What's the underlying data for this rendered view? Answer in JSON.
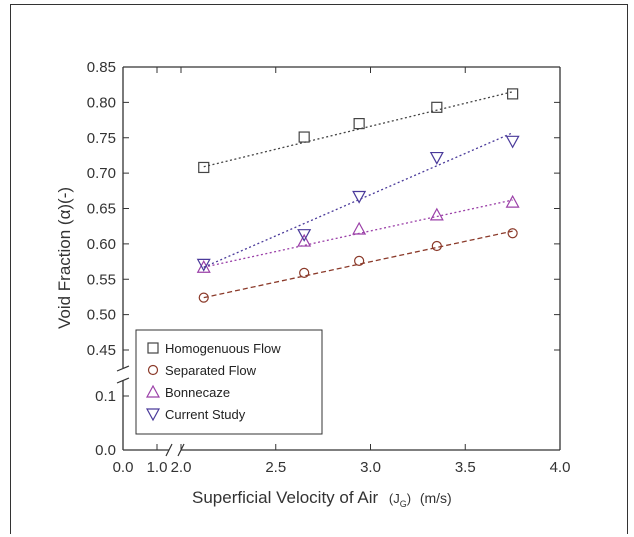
{
  "chart_data": {
    "type": "scatter",
    "xlabel_main": "Superficial Velocity of Air",
    "xlabel_sym": "(J",
    "xlabel_sub": "G",
    "xlabel_close": ")",
    "xlabel_unit": "(m/s)",
    "ylabel": "Void Fraction (α)(-)",
    "x_ticks": [
      "0.0",
      "1.0",
      "2.0",
      "2.5",
      "3.0",
      "3.5",
      "4.0"
    ],
    "y_ticks_upper": [
      "0.85",
      "0.80",
      "0.75",
      "0.70",
      "0.65",
      "0.60",
      "0.55",
      "0.50",
      "0.45"
    ],
    "y_ticks_lower": [
      "0.1",
      "0.0"
    ],
    "x_break": [
      1.0,
      2.0
    ],
    "y_break": [
      0.1,
      0.4
    ],
    "xlim": [
      0,
      4.0
    ],
    "ylim": [
      0,
      0.85
    ],
    "legend_position": "bottom-left",
    "series": [
      {
        "name": "Homogenuous Flow",
        "marker": "square",
        "color": "#444444",
        "line": "dotted",
        "x": [
          2.12,
          2.65,
          2.94,
          3.35,
          3.75
        ],
        "y": [
          0.708,
          0.751,
          0.77,
          0.793,
          0.812
        ],
        "fit": [
          [
            2.12,
            0.709
          ],
          [
            3.75,
            0.815
          ]
        ]
      },
      {
        "name": "Separated Flow",
        "marker": "circle",
        "color": "#8b3a2a",
        "line": "dashed",
        "x": [
          2.12,
          2.65,
          2.94,
          3.35,
          3.75
        ],
        "y": [
          0.524,
          0.559,
          0.576,
          0.597,
          0.615
        ],
        "fit": [
          [
            2.12,
            0.524
          ],
          [
            3.75,
            0.618
          ]
        ]
      },
      {
        "name": "Bonnecaze",
        "marker": "triangle-up",
        "color": "#9b40a8",
        "line": "dotted",
        "x": [
          2.12,
          2.65,
          2.94,
          3.35,
          3.75
        ],
        "y": [
          0.567,
          0.604,
          0.621,
          0.641,
          0.659
        ],
        "fit": [
          [
            2.12,
            0.567
          ],
          [
            3.75,
            0.662
          ]
        ]
      },
      {
        "name": "Current Study",
        "marker": "triangle-down",
        "color": "#4a3a9a",
        "line": "dotted",
        "x": [
          2.12,
          2.65,
          2.94,
          3.35,
          3.75
        ],
        "y": [
          0.571,
          0.613,
          0.667,
          0.722,
          0.745
        ],
        "fit": [
          [
            2.12,
            0.567
          ],
          [
            3.75,
            0.757
          ]
        ]
      }
    ]
  }
}
